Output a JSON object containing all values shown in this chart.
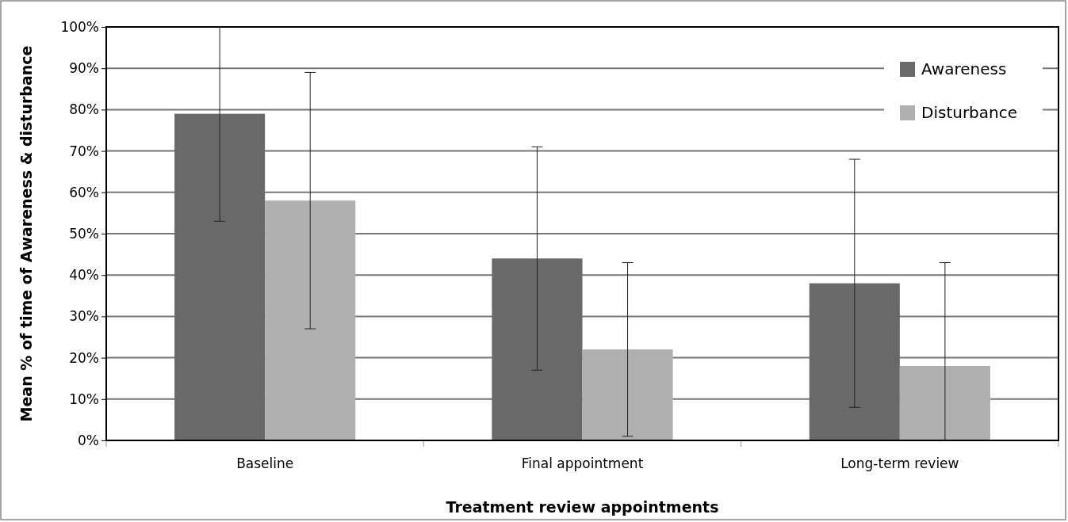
{
  "chart_data": {
    "type": "bar",
    "xlabel": "Treatment review appointments",
    "ylabel": "Mean % of time of Awareness & disturbance",
    "categories": [
      "Baseline",
      "Final appointment",
      "Long-term review"
    ],
    "series": [
      {
        "name": "Awareness",
        "color": "#696969",
        "values": [
          79,
          44,
          38
        ],
        "errors": [
          [
            53,
            100
          ],
          [
            17,
            71
          ],
          [
            8,
            68
          ]
        ]
      },
      {
        "name": "Disturbance",
        "color": "#b0b0b0",
        "values": [
          58,
          22,
          18
        ],
        "errors": [
          [
            27,
            89
          ],
          [
            1,
            43
          ],
          [
            0,
            43
          ]
        ]
      }
    ],
    "ylim": [
      0,
      100
    ],
    "yticks": [
      {
        "value": 0,
        "label": "0%"
      },
      {
        "value": 10,
        "label": "10%"
      },
      {
        "value": 20,
        "label": "20%"
      },
      {
        "value": 30,
        "label": "30%"
      },
      {
        "value": 40,
        "label": "40%"
      },
      {
        "value": 50,
        "label": "50%"
      },
      {
        "value": 60,
        "label": "60%"
      },
      {
        "value": 70,
        "label": "70%"
      },
      {
        "value": 80,
        "label": "80%"
      },
      {
        "value": 90,
        "label": "90%"
      },
      {
        "value": 100,
        "label": "100%"
      }
    ],
    "grid": "y",
    "legend": "top right"
  }
}
